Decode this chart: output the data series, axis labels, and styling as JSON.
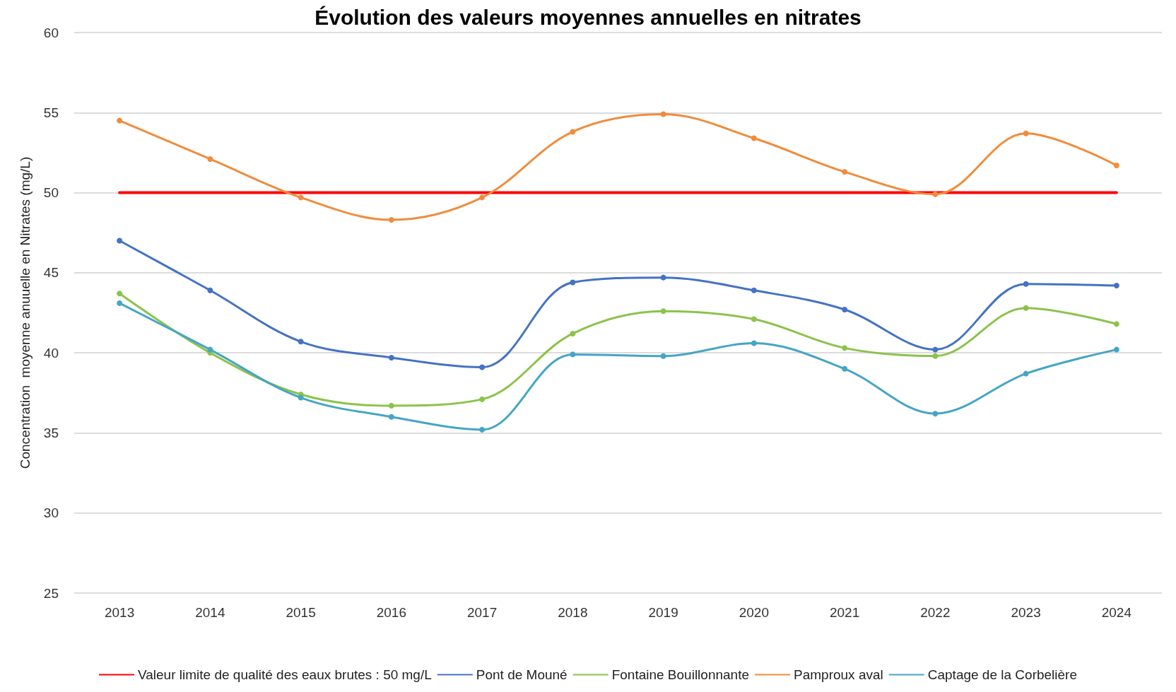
{
  "chart_data": {
    "type": "line",
    "title": "Évolution des valeurs moyennes annuelles en nitrates",
    "ylabel": "Concentration  moyenne anuuelle en Nitrates (mg/L)",
    "categories": [
      "2013",
      "2014",
      "2015",
      "2016",
      "2017",
      "2018",
      "2019",
      "2020",
      "2021",
      "2022",
      "2023",
      "2024"
    ],
    "series": [
      {
        "name": "Valeur limite de qualité des eaux brutes : 50 mg/L",
        "color": "#ff0000",
        "marker": "none",
        "values": [
          50,
          50,
          50,
          50,
          50,
          50,
          50,
          50,
          50,
          50,
          50,
          50
        ]
      },
      {
        "name": "Pont de Mouné",
        "color": "#4472c4",
        "values": [
          47.0,
          43.9,
          40.7,
          39.7,
          39.1,
          44.4,
          44.7,
          43.9,
          42.7,
          40.2,
          44.3,
          44.2
        ]
      },
      {
        "name": "Fontaine Bouillonnante",
        "color": "#8bc34a",
        "values": [
          43.7,
          40.0,
          37.4,
          36.7,
          37.1,
          41.2,
          42.6,
          42.1,
          40.3,
          39.8,
          42.8,
          41.8
        ]
      },
      {
        "name": "Pamproux aval",
        "color": "#f08c3c",
        "values": [
          54.5,
          52.1,
          49.7,
          48.3,
          49.7,
          53.8,
          54.9,
          53.4,
          51.3,
          49.9,
          53.7,
          51.7
        ]
      },
      {
        "name": "Captage de la Corbelière",
        "color": "#45a5c4",
        "values": [
          43.1,
          40.2,
          37.2,
          36.0,
          35.2,
          39.9,
          39.8,
          40.6,
          39.0,
          36.2,
          38.7,
          40.2
        ]
      }
    ],
    "ylim": [
      25,
      60
    ],
    "yticks": [
      25,
      30,
      35,
      40,
      45,
      50,
      55,
      60
    ],
    "grid": "y",
    "legend": "bottom",
    "marker": "circle",
    "line_style": "solid"
  }
}
